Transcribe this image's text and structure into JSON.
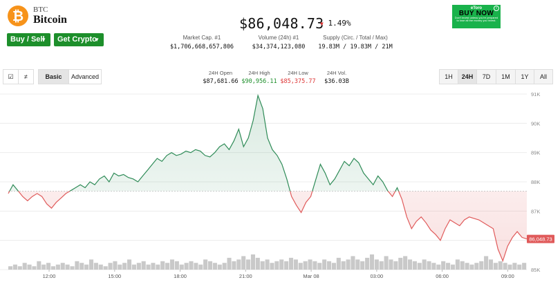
{
  "coin": {
    "symbol": "BTC",
    "name": "Bitcoin",
    "logo_glyph": "₿",
    "logo_color": "#f7931a"
  },
  "actions": {
    "buy_sell": "Buy / Sell",
    "get_crypto": "Get Crypto",
    "accent": "#1d8f2b"
  },
  "price": {
    "value": "$86,048.73",
    "change": "1.49%",
    "direction": "down"
  },
  "stats": [
    {
      "label": "Market Cap. #1",
      "value": "$1,706,668,657,806"
    },
    {
      "label": "Volume (24h) #1",
      "value": "$34,374,123,080"
    },
    {
      "label": "Supply (Circ. / Total / Max)",
      "value": "19.83M / 19.83M / 21M"
    }
  ],
  "ad": {
    "brand": "eToro",
    "cta": "BUY NOW",
    "fine": "Don't invest unless you're prepared to lose all the money you invest.",
    "info": "i"
  },
  "toolbar": {
    "chart_icon": "☑",
    "candle_icon": "≠",
    "modes": [
      "Basic",
      "Advanced"
    ],
    "active_mode": "Basic",
    "ranges": [
      "1H",
      "24H",
      "7D",
      "1M",
      "1Y",
      "All"
    ],
    "active_range": "24H"
  },
  "ohlc": [
    {
      "label": "24H Open",
      "value": "$87,681.66",
      "tone": "neutral"
    },
    {
      "label": "24H High",
      "value": "$90,956.11",
      "tone": "green"
    },
    {
      "label": "24H Low",
      "value": "$85,375.77",
      "tone": "red"
    },
    {
      "label": "24H Vol.",
      "value": "$36.03B",
      "tone": "neutral"
    }
  ],
  "chart_data": {
    "type": "area",
    "title": "",
    "xlabel": "",
    "ylabel": "",
    "x_ticks": [
      "12:00",
      "15:00",
      "18:00",
      "21:00",
      "Mar 08",
      "03:00",
      "06:00",
      "09:00"
    ],
    "y_ticks": [
      "91K",
      "90K",
      "89K",
      "88K",
      "87K",
      "86K",
      "85K"
    ],
    "ylim": [
      85000,
      91000
    ],
    "baseline": 87681.66,
    "last_price_label": "86,048.73",
    "up_color": "#2e8b57",
    "down_color": "#e05a5a",
    "price_points": [
      [
        0,
        87600
      ],
      [
        1,
        87900
      ],
      [
        2,
        87700
      ],
      [
        3,
        87500
      ],
      [
        4,
        87350
      ],
      [
        5,
        87500
      ],
      [
        6,
        87600
      ],
      [
        7,
        87500
      ],
      [
        8,
        87250
      ],
      [
        9,
        87100
      ],
      [
        10,
        87300
      ],
      [
        11,
        87450
      ],
      [
        12,
        87600
      ],
      [
        13,
        87700
      ],
      [
        14,
        87800
      ],
      [
        15,
        87900
      ],
      [
        16,
        87800
      ],
      [
        17,
        88000
      ],
      [
        18,
        87900
      ],
      [
        19,
        88100
      ],
      [
        20,
        88200
      ],
      [
        21,
        88000
      ],
      [
        22,
        88300
      ],
      [
        23,
        88200
      ],
      [
        24,
        88250
      ],
      [
        25,
        88150
      ],
      [
        26,
        88100
      ],
      [
        27,
        88000
      ],
      [
        28,
        88200
      ],
      [
        29,
        88400
      ],
      [
        30,
        88600
      ],
      [
        31,
        88800
      ],
      [
        32,
        88700
      ],
      [
        33,
        88900
      ],
      [
        34,
        89000
      ],
      [
        35,
        88900
      ],
      [
        36,
        88950
      ],
      [
        37,
        89050
      ],
      [
        38,
        89000
      ],
      [
        39,
        89100
      ],
      [
        40,
        89050
      ],
      [
        41,
        88900
      ],
      [
        42,
        88850
      ],
      [
        43,
        89000
      ],
      [
        44,
        89200
      ],
      [
        45,
        89300
      ],
      [
        46,
        89100
      ],
      [
        47,
        89400
      ],
      [
        48,
        89800
      ],
      [
        49,
        89200
      ],
      [
        50,
        89500
      ],
      [
        51,
        90100
      ],
      [
        52,
        90950
      ],
      [
        53,
        90500
      ],
      [
        54,
        89500
      ],
      [
        55,
        89100
      ],
      [
        56,
        88900
      ],
      [
        57,
        88600
      ],
      [
        58,
        88100
      ],
      [
        59,
        87500
      ],
      [
        60,
        87200
      ],
      [
        61,
        86950
      ],
      [
        62,
        87300
      ],
      [
        63,
        87500
      ],
      [
        64,
        88050
      ],
      [
        65,
        88600
      ],
      [
        66,
        88300
      ],
      [
        67,
        87900
      ],
      [
        68,
        88100
      ],
      [
        69,
        88400
      ],
      [
        70,
        88700
      ],
      [
        71,
        88550
      ],
      [
        72,
        88800
      ],
      [
        73,
        88650
      ],
      [
        74,
        88300
      ],
      [
        75,
        88100
      ],
      [
        76,
        87900
      ],
      [
        77,
        88200
      ],
      [
        78,
        88000
      ],
      [
        79,
        87700
      ],
      [
        80,
        87500
      ],
      [
        81,
        87800
      ],
      [
        82,
        87400
      ],
      [
        83,
        86800
      ],
      [
        84,
        86400
      ],
      [
        85,
        86650
      ],
      [
        86,
        86800
      ],
      [
        87,
        86600
      ],
      [
        88,
        86350
      ],
      [
        89,
        86200
      ],
      [
        90,
        86000
      ],
      [
        91,
        86400
      ],
      [
        92,
        86700
      ],
      [
        93,
        86600
      ],
      [
        94,
        86500
      ],
      [
        95,
        86700
      ],
      [
        96,
        86800
      ],
      [
        97,
        86750
      ],
      [
        98,
        86700
      ],
      [
        99,
        86600
      ],
      [
        100,
        86500
      ],
      [
        101,
        86400
      ],
      [
        102,
        85700
      ],
      [
        103,
        85300
      ],
      [
        104,
        85800
      ],
      [
        105,
        86100
      ],
      [
        106,
        86300
      ],
      [
        107,
        86100
      ],
      [
        108,
        86048.73
      ]
    ],
    "volume_bars": [
      2,
      3,
      2,
      4,
      3,
      2,
      5,
      3,
      4,
      2,
      3,
      4,
      3,
      2,
      5,
      4,
      3,
      6,
      4,
      3,
      2,
      4,
      5,
      3,
      4,
      6,
      3,
      4,
      5,
      3,
      4,
      3,
      5,
      4,
      6,
      5,
      3,
      4,
      5,
      4,
      3,
      6,
      5,
      4,
      3,
      4,
      7,
      5,
      6,
      8,
      6,
      9,
      7,
      5,
      6,
      4,
      5,
      6,
      5,
      7,
      6,
      4,
      5,
      6,
      5,
      4,
      6,
      5,
      4,
      7,
      5,
      6,
      8,
      6,
      5,
      7,
      9,
      6,
      5,
      8,
      6,
      5,
      7,
      8,
      6,
      5,
      4,
      6,
      5,
      4,
      3,
      5,
      4,
      3,
      6,
      5,
      4,
      3,
      4,
      5,
      8,
      6,
      4,
      5,
      4,
      3,
      4,
      3,
      4
    ]
  }
}
